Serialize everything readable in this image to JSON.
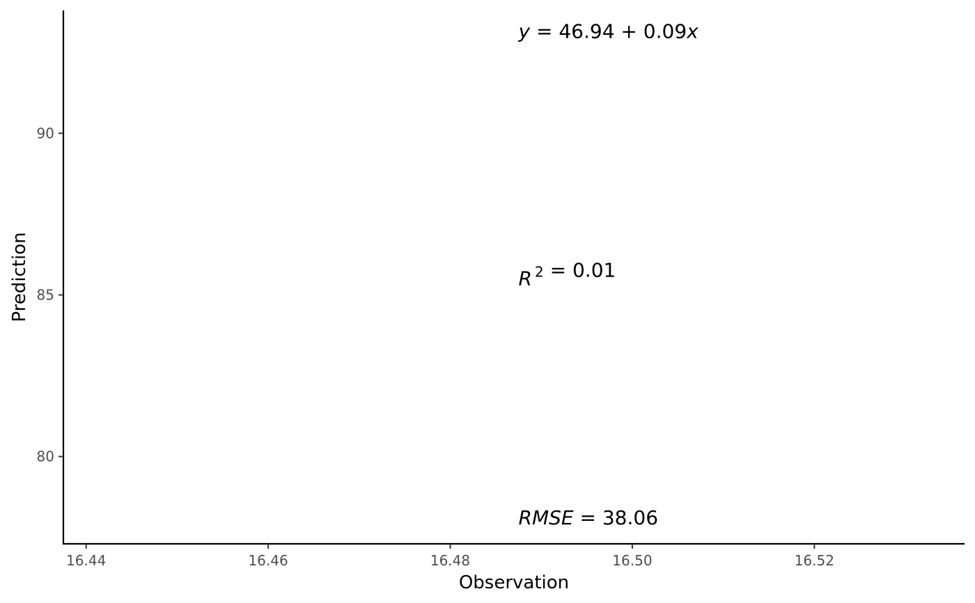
{
  "chart_data": {
    "type": "scatter",
    "xlabel": "Observation",
    "ylabel": "Prediction",
    "xlim": [
      16.4375,
      16.5365
    ],
    "ylim": [
      77.3,
      93.8
    ],
    "x_ticks": [
      16.44,
      16.46,
      16.48,
      16.5,
      16.52
    ],
    "x_tick_labels": [
      "16.44",
      "16.46",
      "16.48",
      "16.50",
      "16.52"
    ],
    "y_ticks": [
      80,
      85,
      90
    ],
    "y_tick_labels": [
      "80",
      "85",
      "90"
    ],
    "grid": false,
    "points": [],
    "annotations": [
      {
        "name": "equation",
        "x": 16.4875,
        "y": 92.95,
        "parts": [
          {
            "t": "y",
            "i": true
          },
          {
            "t": " = 46.94 + 0.09",
            "i": false
          },
          {
            "t": "x",
            "i": true
          }
        ]
      },
      {
        "name": "r-squared",
        "x": 16.4875,
        "y": 85.3,
        "parts": [
          {
            "t": "R",
            "i": true
          },
          {
            "t": "2",
            "i": false,
            "sup": true
          },
          {
            "t": " = 0.01",
            "i": false
          }
        ]
      },
      {
        "name": "rmse",
        "x": 16.4875,
        "y": 77.9,
        "parts": [
          {
            "t": "RMSE",
            "i": true
          },
          {
            "t": " = 38.06",
            "i": false
          }
        ]
      }
    ]
  }
}
